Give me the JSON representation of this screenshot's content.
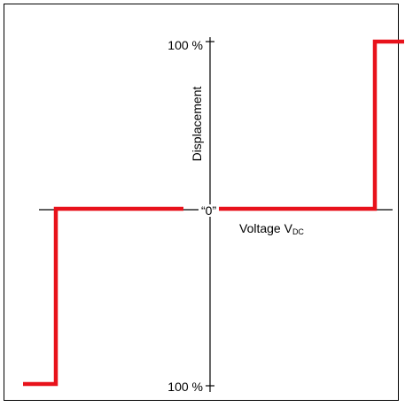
{
  "labels": {
    "y_top": "100 %",
    "y_bottom": "100 %",
    "origin": "“0”",
    "y_axis": "Displacement",
    "x_axis": "Voltage V",
    "x_axis_subscript": "DC"
  },
  "colors": {
    "curve": "#e8121b",
    "axes": "#000000"
  }
}
